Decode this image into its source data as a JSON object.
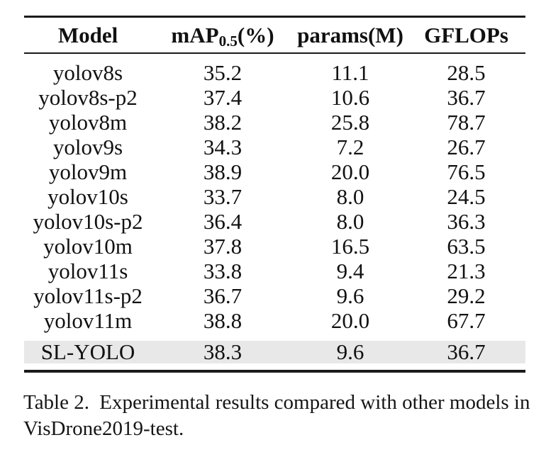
{
  "table": {
    "header": {
      "model": "Model",
      "map_prefix": "mAP",
      "map_sub": "0.5",
      "map_suffix": "(%)",
      "params": "params(M)",
      "gflops": "GFLOPs"
    },
    "rows": [
      {
        "model": "yolov8s",
        "map": "35.2",
        "params": "11.1",
        "gflops": "28.5"
      },
      {
        "model": "yolov8s-p2",
        "map": "37.4",
        "params": "10.6",
        "gflops": "36.7"
      },
      {
        "model": "yolov8m",
        "map": "38.2",
        "params": "25.8",
        "gflops": "78.7"
      },
      {
        "model": "yolov9s",
        "map": "34.3",
        "params": "7.2",
        "gflops": "26.7"
      },
      {
        "model": "yolov9m",
        "map": "38.9",
        "params": "20.0",
        "gflops": "76.5"
      },
      {
        "model": "yolov10s",
        "map": "33.7",
        "params": "8.0",
        "gflops": "24.5"
      },
      {
        "model": "yolov10s-p2",
        "map": "36.4",
        "params": "8.0",
        "gflops": "36.3"
      },
      {
        "model": "yolov10m",
        "map": "37.8",
        "params": "16.5",
        "gflops": "63.5"
      },
      {
        "model": "yolov11s",
        "map": "33.8",
        "params": "9.4",
        "gflops": "21.3"
      },
      {
        "model": "yolov11s-p2",
        "map": "36.7",
        "params": "9.6",
        "gflops": "29.2"
      },
      {
        "model": "yolov11m",
        "map": "38.8",
        "params": "20.0",
        "gflops": "67.7"
      },
      {
        "model": "SL-YOLO",
        "map": "38.3",
        "params": "9.6",
        "gflops": "36.7"
      }
    ],
    "highlighted_row": "SL-YOLO"
  },
  "caption": {
    "label": "Table 2.",
    "line1_rest": "Experimental results compared with other models in",
    "line2": "VisDrone2019-test."
  },
  "colors": {
    "highlight_bg": "#e8e8e8",
    "rule": "#1a1a1a",
    "text": "#111111"
  }
}
